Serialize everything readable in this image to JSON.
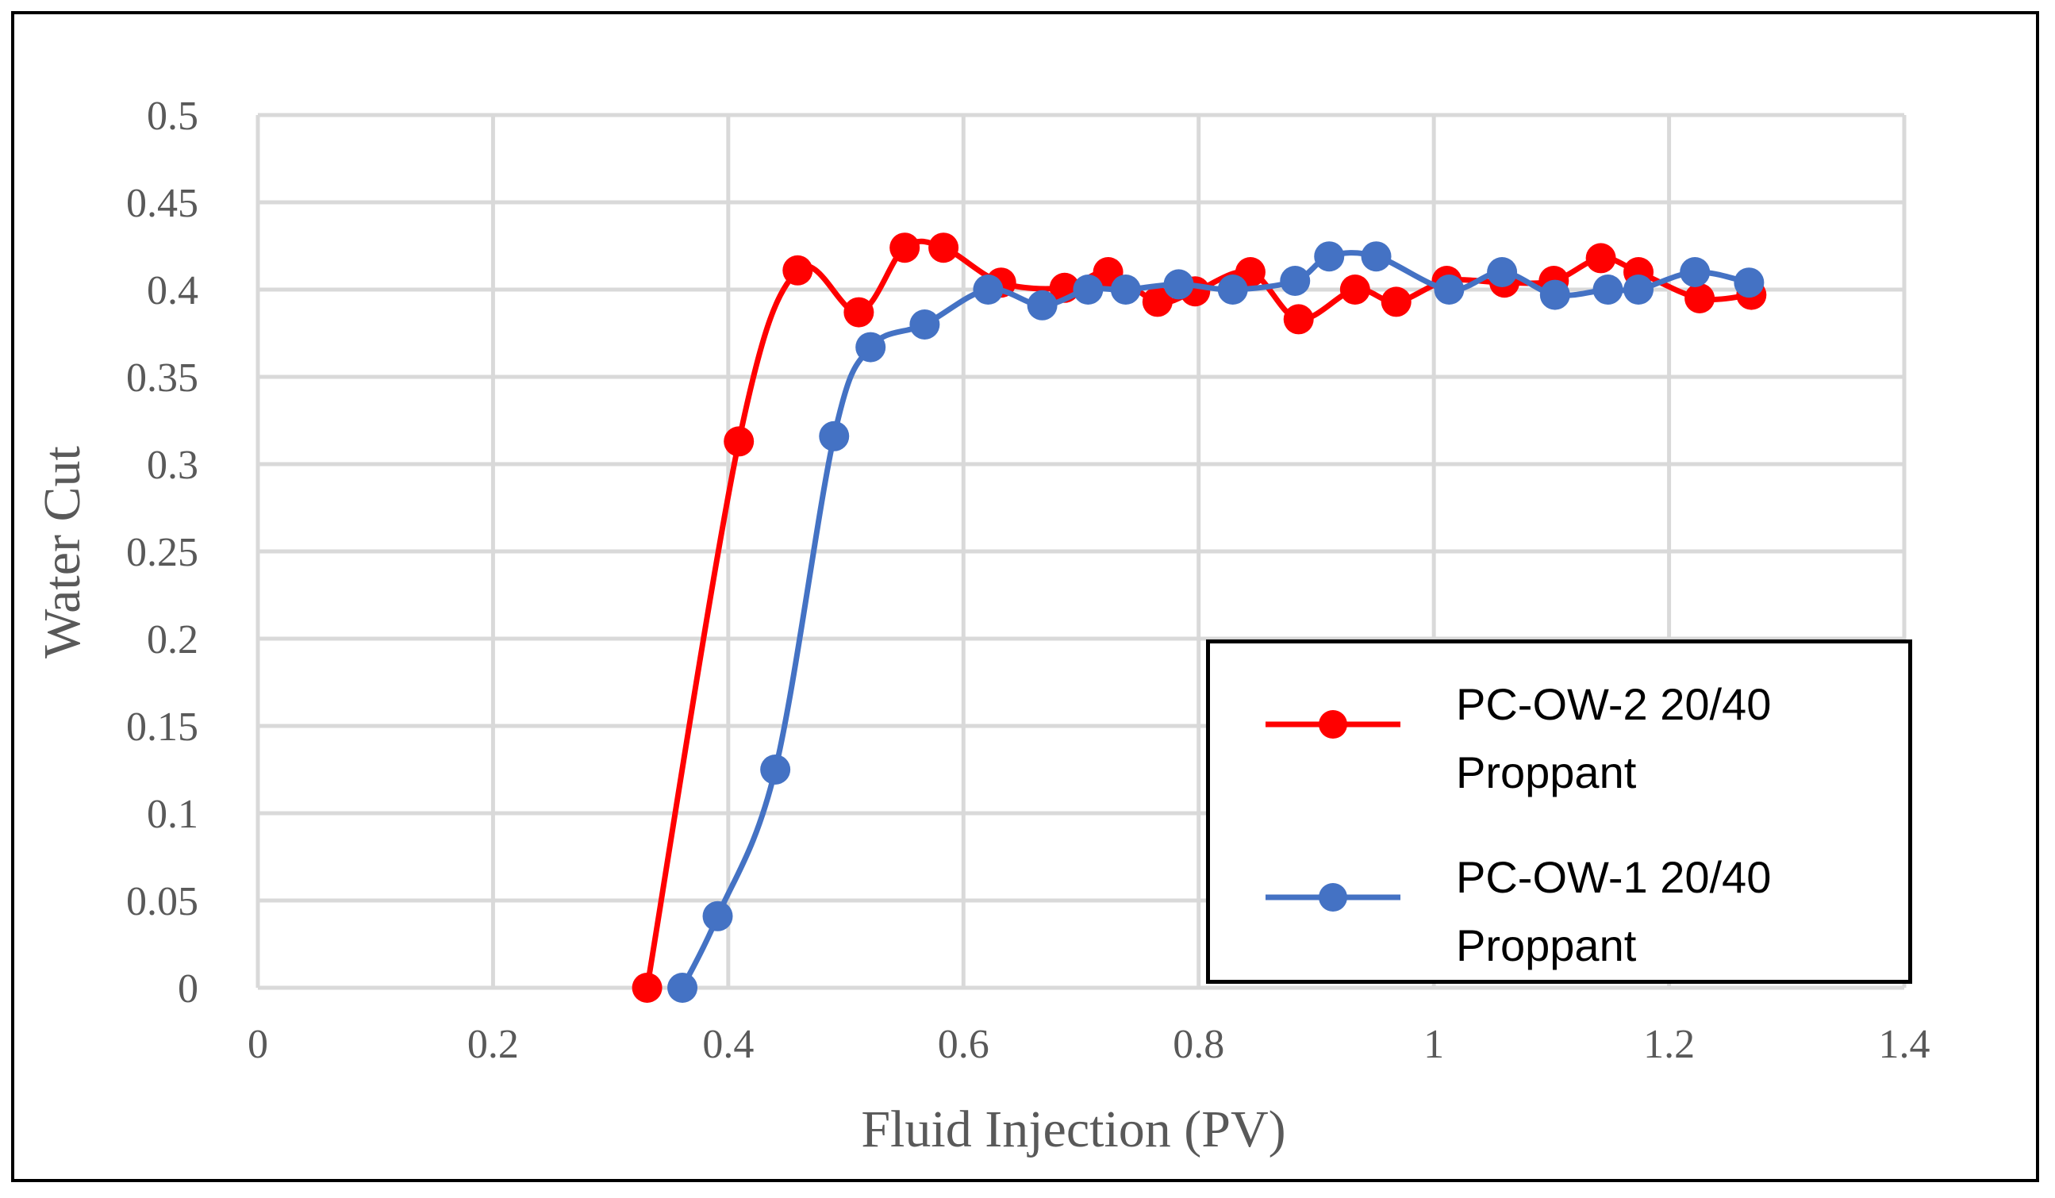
{
  "chart_data": {
    "type": "line",
    "title": "",
    "xlabel": "Fluid Injection (PV)",
    "ylabel": "Water Cut",
    "xlim": [
      0,
      1.4
    ],
    "ylim": [
      0,
      0.5
    ],
    "x_ticks": [
      0,
      0.2,
      0.4,
      0.6,
      0.8,
      1,
      1.2,
      1.4
    ],
    "x_tick_labels": [
      "0",
      "0.2",
      "0.4",
      "0.6",
      "0.8",
      "1",
      "1.2",
      "1.4"
    ],
    "y_ticks": [
      0,
      0.05,
      0.1,
      0.15,
      0.2,
      0.25,
      0.3,
      0.35,
      0.4,
      0.45,
      0.5
    ],
    "y_tick_labels": [
      "0",
      "0.05",
      "0.1",
      "0.15",
      "0.2",
      "0.25",
      "0.3",
      "0.35",
      "0.4",
      "0.45",
      "0.5"
    ],
    "grid": true,
    "legend_position": "bottom-right",
    "series": [
      {
        "name": "PC-OW-2 20/40 Proppant",
        "label_lines": [
          "PC-OW-2 20/40",
          "Proppant"
        ],
        "color": "#FF0000",
        "x": [
          0.331,
          0.409,
          0.459,
          0.511,
          0.55,
          0.583,
          0.632,
          0.686,
          0.723,
          0.765,
          0.797,
          0.844,
          0.885,
          0.933,
          0.968,
          1.011,
          1.06,
          1.102,
          1.142,
          1.174,
          1.226,
          1.27
        ],
        "y": [
          0.0,
          0.313,
          0.411,
          0.387,
          0.424,
          0.424,
          0.404,
          0.401,
          0.41,
          0.393,
          0.399,
          0.41,
          0.383,
          0.4,
          0.393,
          0.405,
          0.404,
          0.405,
          0.418,
          0.41,
          0.395,
          0.397
        ]
      },
      {
        "name": "PC-OW-1 20/40 Proppant",
        "label_lines": [
          "PC-OW-1 20/40",
          "Proppant"
        ],
        "color": "#4472C4",
        "x": [
          0.361,
          0.391,
          0.44,
          0.49,
          0.521,
          0.567,
          0.621,
          0.667,
          0.706,
          0.738,
          0.783,
          0.829,
          0.882,
          0.911,
          0.951,
          1.013,
          1.058,
          1.103,
          1.148,
          1.174,
          1.222,
          1.268
        ],
        "y": [
          0.0,
          0.041,
          0.125,
          0.316,
          0.367,
          0.38,
          0.4,
          0.391,
          0.4,
          0.4,
          0.403,
          0.4,
          0.405,
          0.419,
          0.419,
          0.4,
          0.41,
          0.397,
          0.4,
          0.4,
          0.41,
          0.404
        ]
      }
    ]
  }
}
